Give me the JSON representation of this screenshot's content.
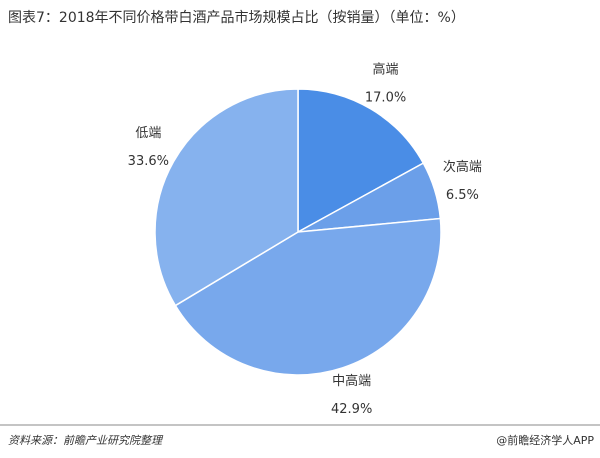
{
  "chart_data": {
    "type": "pie",
    "title": "图表7：2018年不同价格带白酒产品市场规模占比（按销量）（单位：%）",
    "categories": [
      "高端",
      "次高端",
      "中高端",
      "低端"
    ],
    "values": [
      17.0,
      6.5,
      42.9,
      33.6
    ],
    "value_labels": [
      "17.0%",
      "6.5%",
      "42.9%",
      "33.6%"
    ],
    "colors": [
      "#4a8de6",
      "#6b9fe9",
      "#78a8ec",
      "#86b2ee"
    ]
  },
  "footer": {
    "source": "资料来源：前瞻产业研究院整理",
    "brand": "@前瞻经济学人APP"
  }
}
